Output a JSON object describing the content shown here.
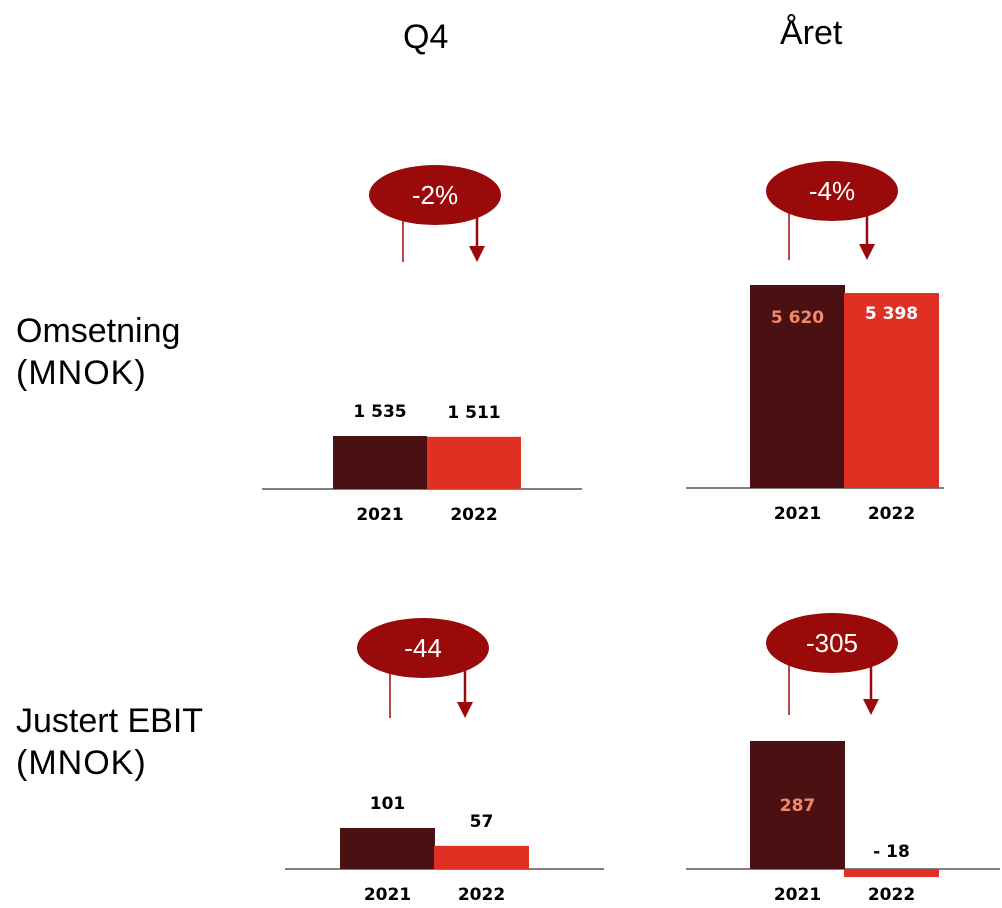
{
  "headers": {
    "q4": "Q4",
    "year": "Året"
  },
  "rows": [
    {
      "title": "Omsetning",
      "unit": "(MNOK)"
    },
    {
      "title": "Justert EBIT",
      "unit": "(MNOK)"
    }
  ],
  "colors": {
    "y2021": "#4a1012",
    "y2022": "#e03024",
    "bubble": "#9b0a0a",
    "label_on_dark": "#f28a6a"
  },
  "chart_data": [
    {
      "type": "bar",
      "title": "Q4",
      "ylabel": "Omsetning (MNOK)",
      "categories": [
        "2021",
        "2022"
      ],
      "values": [
        1535,
        1511
      ],
      "value_labels": [
        "1 535",
        "1 511"
      ],
      "change": "-2%",
      "ylim": [
        0,
        6000
      ]
    },
    {
      "type": "bar",
      "title": "Året",
      "ylabel": "Omsetning (MNOK)",
      "categories": [
        "2021",
        "2022"
      ],
      "values": [
        5620,
        5398
      ],
      "value_labels": [
        "5 620",
        "5 398"
      ],
      "change": "-4%",
      "ylim": [
        0,
        6000
      ]
    },
    {
      "type": "bar",
      "title": "Q4",
      "ylabel": "Justert EBIT (MNOK)",
      "categories": [
        "2021",
        "2022"
      ],
      "values": [
        101,
        57
      ],
      "value_labels": [
        "101",
        "57"
      ],
      "change": "-44",
      "ylim": [
        -30,
        320
      ]
    },
    {
      "type": "bar",
      "title": "Året",
      "ylabel": "Justert EBIT (MNOK)",
      "categories": [
        "2021",
        "2022"
      ],
      "values": [
        287,
        -18
      ],
      "value_labels": [
        "287",
        "-  18"
      ],
      "change": "-305",
      "ylim": [
        -30,
        320
      ]
    }
  ]
}
